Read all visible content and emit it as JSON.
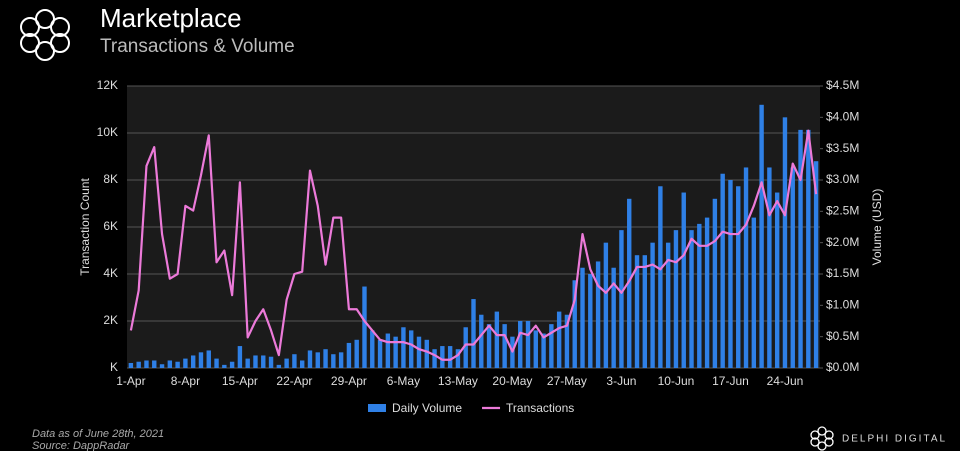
{
  "header": {
    "title": "Marketplace",
    "subtitle": "Transactions & Volume"
  },
  "chart_data": {
    "type": "combo",
    "ylabel": "Transaction Count",
    "y2label": "Volume (USD)",
    "ylim": [
      0,
      12000
    ],
    "yticks": [
      {
        "value": 0,
        "label": "K"
      },
      {
        "value": 2000,
        "label": "2K"
      },
      {
        "value": 4000,
        "label": "4K"
      },
      {
        "value": 6000,
        "label": "6K"
      },
      {
        "value": 8000,
        "label": "8K"
      },
      {
        "value": 10000,
        "label": "10K"
      },
      {
        "value": 12000,
        "label": "12K"
      }
    ],
    "y2lim": [
      0,
      4500000
    ],
    "y2ticks": [
      {
        "value": 0,
        "label": "$0.0M"
      },
      {
        "value": 500000,
        "label": "$0.5M"
      },
      {
        "value": 1000000,
        "label": "$1.0M"
      },
      {
        "value": 1500000,
        "label": "$1.5M"
      },
      {
        "value": 2000000,
        "label": "$2.0M"
      },
      {
        "value": 2500000,
        "label": "$2.5M"
      },
      {
        "value": 3000000,
        "label": "$3.0M"
      },
      {
        "value": 3500000,
        "label": "$3.5M"
      },
      {
        "value": 4000000,
        "label": "$4.0M"
      },
      {
        "value": 4500000,
        "label": "$4.5M"
      }
    ],
    "grid": true,
    "legend": "bottom",
    "categories": [
      "1-Apr",
      null,
      null,
      null,
      null,
      null,
      null,
      "8-Apr",
      null,
      null,
      null,
      null,
      null,
      null,
      "15-Apr",
      null,
      null,
      null,
      null,
      null,
      null,
      "22-Apr",
      null,
      null,
      null,
      null,
      null,
      null,
      "29-Apr",
      null,
      null,
      null,
      null,
      null,
      null,
      "6-May",
      null,
      null,
      null,
      null,
      null,
      null,
      "13-May",
      null,
      null,
      null,
      null,
      null,
      null,
      "20-May",
      null,
      null,
      null,
      null,
      null,
      null,
      "27-May",
      null,
      null,
      null,
      null,
      null,
      null,
      "3-Jun",
      null,
      null,
      null,
      null,
      null,
      null,
      "10-Jun",
      null,
      null,
      null,
      null,
      null,
      null,
      "17-Jun",
      null,
      null,
      null,
      null,
      null,
      null,
      "24-Jun",
      null,
      null,
      null,
      null
    ],
    "series": [
      {
        "name": "Daily Volume",
        "type": "bar",
        "axis": "y2",
        "color": "#2f80e6",
        "values": [
          80000,
          100000,
          120000,
          120000,
          60000,
          120000,
          100000,
          150000,
          200000,
          250000,
          280000,
          150000,
          50000,
          100000,
          350000,
          150000,
          200000,
          200000,
          180000,
          50000,
          150000,
          220000,
          120000,
          280000,
          250000,
          300000,
          220000,
          250000,
          400000,
          450000,
          1300000,
          600000,
          450000,
          550000,
          500000,
          650000,
          600000,
          500000,
          450000,
          300000,
          350000,
          350000,
          300000,
          650000,
          1100000,
          850000,
          700000,
          900000,
          700000,
          500000,
          750000,
          750000,
          600000,
          550000,
          700000,
          900000,
          850000,
          1400000,
          1600000,
          1500000,
          1700000,
          2000000,
          1600000,
          2200000,
          2700000,
          1800000,
          1800000,
          2000000,
          2900000,
          2000000,
          2200000,
          2800000,
          2200000,
          2300000,
          2400000,
          2700000,
          3100000,
          3000000,
          2900000,
          3200000,
          2400000,
          4200000,
          3200000,
          2800000,
          4000000,
          3200000,
          3800000,
          3800000,
          3300000
        ]
      },
      {
        "name": "Transactions",
        "type": "line",
        "color": "#ec7ad9",
        "values": [
          1600,
          3300,
          8600,
          9400,
          5700,
          3800,
          4000,
          6900,
          6700,
          8200,
          9900,
          4500,
          5000,
          3100,
          7900,
          1300,
          2000,
          2500,
          1600,
          550,
          2900,
          4000,
          4100,
          8400,
          6900,
          4400,
          6400,
          6400,
          2500,
          2500,
          2000,
          1600,
          1200,
          1100,
          1100,
          1100,
          1000,
          800,
          700,
          550,
          350,
          350,
          550,
          1000,
          1000,
          1400,
          1800,
          1400,
          1400,
          700,
          1500,
          1400,
          1800,
          1300,
          1500,
          1700,
          1800,
          2900,
          5700,
          4200,
          3500,
          3200,
          3600,
          3200,
          3700,
          4300,
          4300,
          4400,
          4200,
          4600,
          4500,
          4800,
          5500,
          5200,
          5200,
          5400,
          5800,
          5700,
          5700,
          6100,
          6900,
          7900,
          6500,
          7100,
          6500,
          8700,
          8000,
          10100,
          7400
        ]
      }
    ]
  },
  "footer": {
    "note": "Data as of June 28th, 2021",
    "source": "Source: DappRadar",
    "brand": "DELPHI DIGITAL"
  }
}
